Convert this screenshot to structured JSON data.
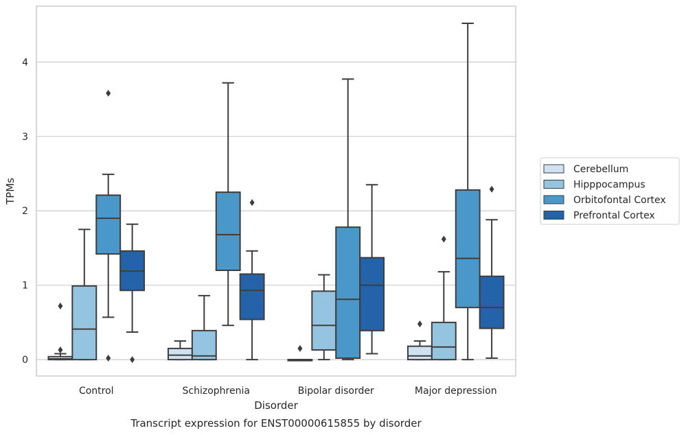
{
  "chart_data": {
    "type": "box",
    "caption": "Transcript expression for ENST00000615855 by disorder",
    "xlabel": "Disorder",
    "ylabel": "TPMs",
    "ylim": [
      -0.22,
      4.75
    ],
    "yticks": [
      0,
      1,
      2,
      3,
      4
    ],
    "grid": "horizontal",
    "legend_position": "right",
    "categories": [
      "Control",
      "Schizophrenia",
      "Bipolar disorder",
      "Major depression"
    ],
    "series": [
      {
        "name": "Cerebellum",
        "color": "#d0e1f2",
        "boxes": [
          {
            "whisker_low": 0.0,
            "q1": 0.0,
            "median": 0.01,
            "q3": 0.04,
            "whisker_high": 0.08,
            "outliers": [
              0.13,
              0.72
            ]
          },
          {
            "whisker_low": 0.0,
            "q1": 0.0,
            "median": 0.06,
            "q3": 0.15,
            "whisker_high": 0.25,
            "outliers": []
          },
          {
            "whisker_low": 0.0,
            "q1": 0.0,
            "median": 0.0,
            "q3": 0.0,
            "whisker_high": 0.0,
            "outliers": [
              0.15
            ]
          },
          {
            "whisker_low": 0.0,
            "q1": 0.0,
            "median": 0.05,
            "q3": 0.18,
            "whisker_high": 0.25,
            "outliers": [
              0.48
            ]
          }
        ]
      },
      {
        "name": "Hipppocampus",
        "color": "#94c4df",
        "boxes": [
          {
            "whisker_low": 0.0,
            "q1": 0.0,
            "median": 0.41,
            "q3": 0.99,
            "whisker_high": 1.75,
            "outliers": []
          },
          {
            "whisker_low": 0.0,
            "q1": 0.0,
            "median": 0.05,
            "q3": 0.39,
            "whisker_high": 0.86,
            "outliers": []
          },
          {
            "whisker_low": 0.0,
            "q1": 0.13,
            "median": 0.46,
            "q3": 0.92,
            "whisker_high": 1.14,
            "outliers": []
          },
          {
            "whisker_low": 0.0,
            "q1": 0.0,
            "median": 0.17,
            "q3": 0.5,
            "whisker_high": 1.18,
            "outliers": [
              1.62
            ]
          }
        ]
      },
      {
        "name": "Orbitofontal Cortex",
        "color": "#4a98c9",
        "boxes": [
          {
            "whisker_low": 0.57,
            "q1": 1.42,
            "median": 1.9,
            "q3": 2.21,
            "whisker_high": 2.49,
            "outliers": [
              0.02,
              3.58
            ]
          },
          {
            "whisker_low": 0.46,
            "q1": 1.2,
            "median": 1.68,
            "q3": 2.25,
            "whisker_high": 3.72,
            "outliers": []
          },
          {
            "whisker_low": 0.0,
            "q1": 0.02,
            "median": 0.81,
            "q3": 1.78,
            "whisker_high": 3.77,
            "outliers": []
          },
          {
            "whisker_low": 0.0,
            "q1": 0.7,
            "median": 1.36,
            "q3": 2.28,
            "whisker_high": 4.52,
            "outliers": []
          }
        ]
      },
      {
        "name": "Prefrontal Cortex",
        "color": "#2463a9",
        "boxes": [
          {
            "whisker_low": 0.37,
            "q1": 0.93,
            "median": 1.19,
            "q3": 1.46,
            "whisker_high": 1.82,
            "outliers": [
              0.0
            ]
          },
          {
            "whisker_low": 0.0,
            "q1": 0.54,
            "median": 0.93,
            "q3": 1.15,
            "whisker_high": 1.46,
            "outliers": [
              2.11
            ]
          },
          {
            "whisker_low": 0.08,
            "q1": 0.39,
            "median": 1.0,
            "q3": 1.37,
            "whisker_high": 2.35,
            "outliers": []
          },
          {
            "whisker_low": 0.02,
            "q1": 0.42,
            "median": 0.7,
            "q3": 1.12,
            "whisker_high": 1.88,
            "outliers": [
              2.29
            ]
          }
        ]
      }
    ]
  }
}
